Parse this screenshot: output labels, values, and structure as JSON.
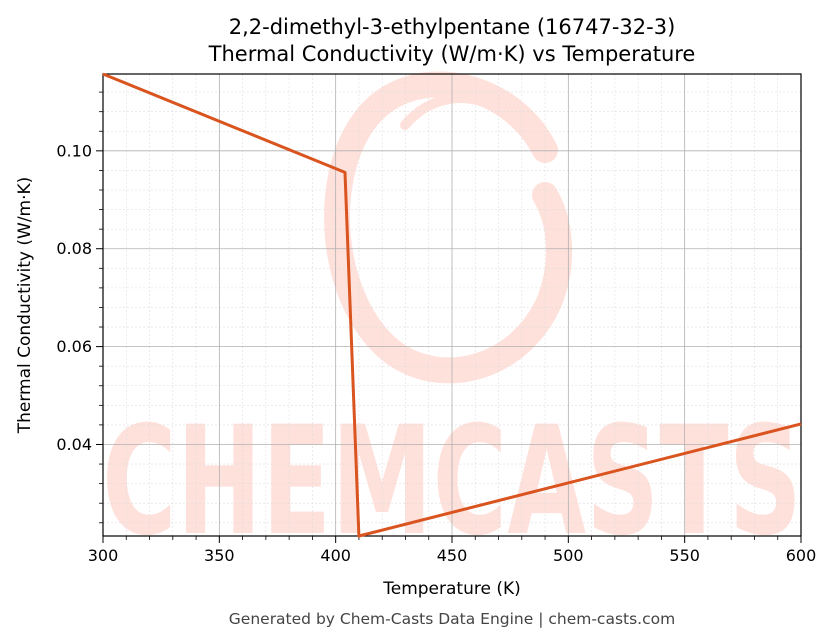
{
  "chart_data": {
    "type": "line",
    "title": "2,2-dimethyl-3-ethylpentane (16747-32-3)",
    "subtitle": "Thermal Conductivity (W/m·K) vs Temperature",
    "xlabel": "Temperature (K)",
    "ylabel": "Thermal Conductivity (W/m·K)",
    "xlim": [
      300,
      600
    ],
    "ylim": [
      0.0213,
      0.1157
    ],
    "x_ticks": [
      300,
      350,
      400,
      450,
      500,
      550,
      600
    ],
    "x_tick_labels": [
      "300",
      "350",
      "400",
      "450",
      "500",
      "550",
      "600"
    ],
    "y_ticks": [
      0.04,
      0.06,
      0.08,
      0.1
    ],
    "y_tick_labels": [
      "0.04",
      "0.06",
      "0.08",
      "0.10"
    ],
    "grid": true,
    "line_color": "#d9541e",
    "series": [
      {
        "x": [
          300,
          404,
          410,
          600
        ],
        "values": [
          0.1157,
          0.0956,
          0.0213,
          0.0442
        ]
      }
    ]
  },
  "watermark": {
    "text": "CHEMCASTS",
    "color": "#ffe1dc"
  },
  "footer": "Generated by Chem-Casts Data Engine | chem-casts.com"
}
